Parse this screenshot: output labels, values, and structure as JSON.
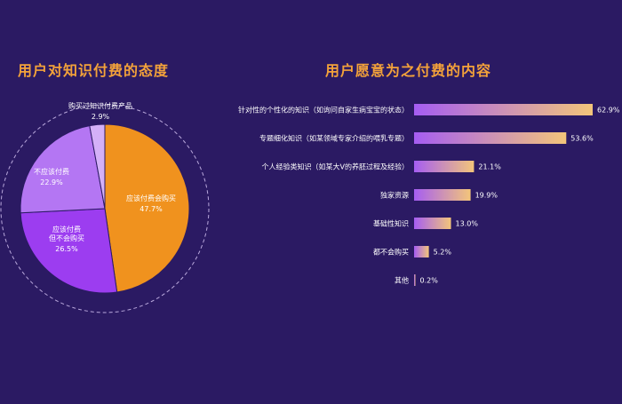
{
  "chart_data": [
    {
      "type": "pie",
      "title": "用户对知识付费的态度",
      "slices": [
        {
          "label": "应该付费会购买",
          "label_lines": [
            "应该付费会购买"
          ],
          "value": 47.7,
          "value_text": "47.7%",
          "color": "#f0921e"
        },
        {
          "label": "应该付费但不会购买",
          "label_lines": [
            "应该付费",
            "但不会购买"
          ],
          "value": 26.5,
          "value_text": "26.5%",
          "color": "#9c3df0"
        },
        {
          "label": "不应该付费",
          "label_lines": [
            "不应该付费"
          ],
          "value": 22.9,
          "value_text": "22.9%",
          "color": "#b476f3"
        },
        {
          "label": "购买过知识付费产品",
          "label_lines": [
            "购买过知识付费产品"
          ],
          "value": 2.9,
          "value_text": "2.9%",
          "color": "#d4b0f8"
        }
      ]
    },
    {
      "type": "bar",
      "orientation": "horizontal",
      "title": "用户愿意为之付费的内容",
      "categories": [
        "针对性的个性化的知识（如询问自家生病宝宝的状态）",
        "专题细化知识（如某领域专家介绍的喂乳专题）",
        "个人经验类知识（如某大V的养胚过程及经验）",
        "独家资源",
        "基础性知识",
        "都不会购买",
        "其他"
      ],
      "values": [
        62.9,
        53.6,
        21.1,
        19.9,
        13.0,
        5.2,
        0.2
      ],
      "value_labels": [
        "62.9%",
        "53.6%",
        "21.1%",
        "19.9%",
        "13.0%",
        "5.2%",
        "0.2%"
      ],
      "xlim": [
        0,
        62.9
      ],
      "gradient_colors": [
        "#a55df2",
        "#f3c57a"
      ]
    }
  ]
}
